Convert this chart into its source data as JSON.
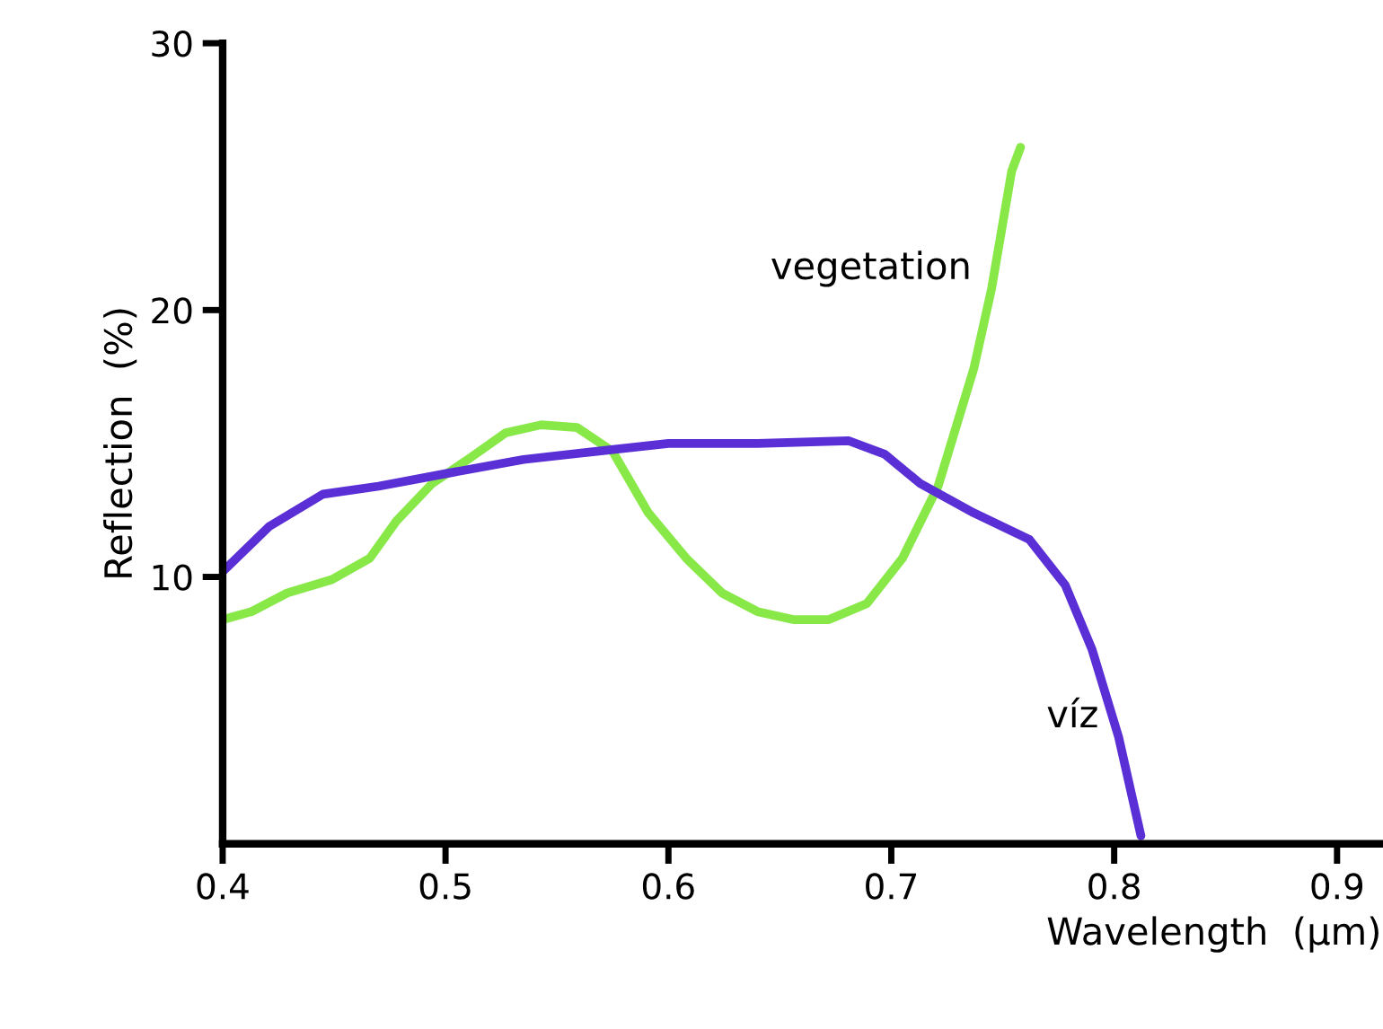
{
  "chart_data": {
    "type": "line",
    "xlabel": "Wavelength  (μm)",
    "ylabel": "Reflection  (%)",
    "xlim": [
      0.4,
      0.92
    ],
    "ylim": [
      0,
      30
    ],
    "xticks": [
      0.4,
      0.5,
      0.6,
      0.7,
      0.8,
      0.9
    ],
    "yticks": [
      10,
      20,
      30
    ],
    "grid": false,
    "legend": false,
    "marker": "none",
    "line_style": "solid",
    "series": [
      {
        "name": "vegetation",
        "color": "#88e848",
        "x": [
          0.4,
          0.413,
          0.429,
          0.449,
          0.466,
          0.478,
          0.494,
          0.51,
          0.527,
          0.543,
          0.559,
          0.575,
          0.591,
          0.608,
          0.624,
          0.64,
          0.656,
          0.672,
          0.689,
          0.705,
          0.721,
          0.737,
          0.745,
          0.754,
          0.758
        ],
        "values": [
          8.4,
          8.7,
          9.4,
          9.9,
          10.7,
          12.1,
          13.5,
          14.4,
          15.4,
          15.7,
          15.6,
          14.7,
          12.4,
          10.7,
          9.4,
          8.7,
          8.4,
          8.4,
          9.0,
          10.7,
          13.4,
          17.8,
          20.8,
          25.2,
          26.1
        ]
      },
      {
        "name": "víz",
        "color": "#5a2fd6",
        "x": [
          0.4,
          0.421,
          0.445,
          0.47,
          0.502,
          0.535,
          0.567,
          0.6,
          0.64,
          0.681,
          0.697,
          0.713,
          0.737,
          0.762,
          0.778,
          0.79,
          0.802,
          0.812
        ],
        "values": [
          10.2,
          11.9,
          13.1,
          13.4,
          13.9,
          14.4,
          14.7,
          15.0,
          15.0,
          15.1,
          14.6,
          13.5,
          12.4,
          11.4,
          9.7,
          7.3,
          4.0,
          0.3
        ]
      }
    ]
  }
}
